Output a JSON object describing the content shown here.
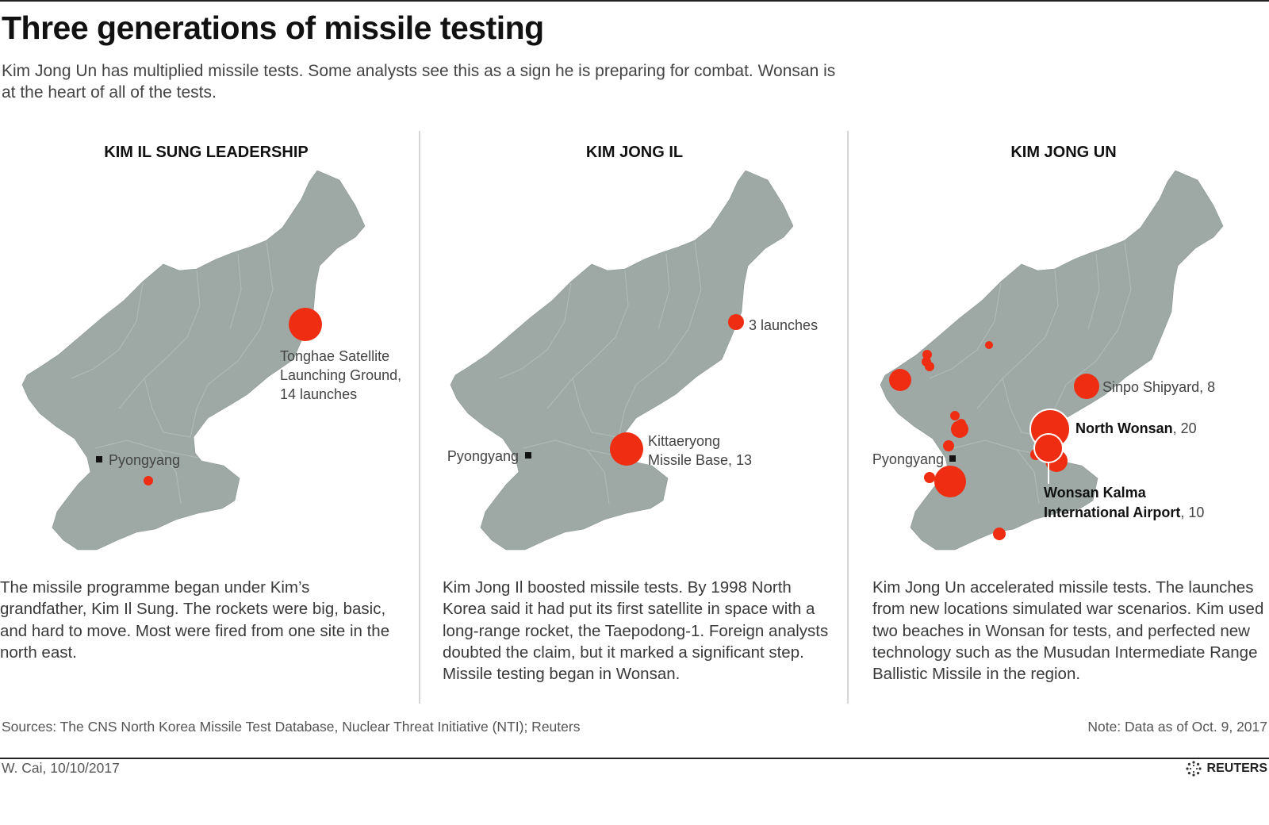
{
  "header": {
    "title": "Three generations of missile testing",
    "subtitle": "Kim Jong Un has multiplied missile tests. Some analysts see this as a sign he is preparing for combat. Wonsan is at the heart of all of the tests."
  },
  "panels": [
    {
      "heading": "KIM IL SUNG LEADERSHIP",
      "city_label": "Pyongyang",
      "site_label_lines": [
        "Tonghae Satellite",
        "Launching Ground,",
        "14 launches"
      ],
      "text": "The missile programme began under Kim’s grandfather, Kim Il Sung. The rockets were big, basic, and hard to move. Most were fired from one site in the north east."
    },
    {
      "heading": "KIM JONG IL",
      "city_label": "Pyongyang",
      "site_label_1": "3 launches",
      "site_label_2_lines": [
        "Kittaeryong",
        "Missile Base, 13"
      ],
      "text": "Kim Jong Il boosted missile tests. By 1998 North Korea said it had put its first satellite in space with a long-range rocket, the Taepodong-1. Foreign analysts doubted the claim, but it marked a significant step. Missile testing began in Wonsan."
    },
    {
      "heading": "KIM JONG UN",
      "city_label": "Pyongyang",
      "sinpo_label": "Sinpo Shipyard, 8",
      "north_wonsan_name": "North Wonsan",
      "north_wonsan_count": ", 20",
      "kalma_name_line1": "Wonsan Kalma",
      "kalma_name_line2": "International Airport",
      "kalma_count": ", 10",
      "text": "Kim Jong Un accelerated missile tests. The launches from new locations simulated war scenarios. Kim used two beaches in Wonsan for tests, and perfected new technology such as the Musudan Intermediate Range Ballistic Missile in the region."
    }
  ],
  "footer": {
    "sources": "Sources: The CNS North Korea Missile Test Database, Nuclear Threat Initiative (NTI); Reuters",
    "note": "Note: Data as of Oct. 9, 2017",
    "byline": "W. Cai,  10/10/2017",
    "credit": "REUTERS"
  },
  "colors": {
    "land": "#9ea9a5",
    "launch_site": "#ee2d13"
  },
  "launch_sites": {
    "kim_il_sung": [
      {
        "name": "Tonghae Satellite Launching Ground",
        "launches": 14
      }
    ],
    "kim_jong_il": [
      {
        "name": "Kittaeryong Missile Base",
        "launches": 13
      },
      {
        "name": "north-east site",
        "launches": 3
      }
    ],
    "kim_jong_un": [
      {
        "name": "North Wonsan",
        "launches": 20
      },
      {
        "name": "Wonsan Kalma International Airport",
        "launches": 10
      },
      {
        "name": "Sinpo Shipyard",
        "launches": 8
      }
    ]
  }
}
